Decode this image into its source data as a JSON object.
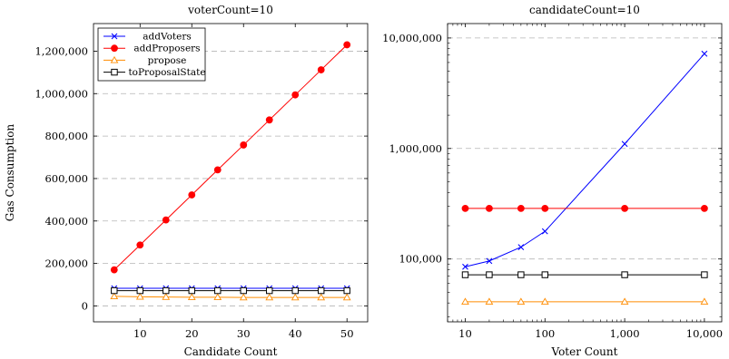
{
  "chart_data": [
    {
      "type": "line",
      "title": "voterCount=10",
      "xlabel": "Candidate Count",
      "ylabel": "Gas Consumption",
      "xlim": [
        1,
        54
      ],
      "ylim": [
        -75000,
        1330000
      ],
      "xticks": [
        10,
        20,
        30,
        40,
        50
      ],
      "xtick_labels": [
        "10",
        "20",
        "30",
        "40",
        "50"
      ],
      "yticks": [
        0,
        200000,
        400000,
        600000,
        800000,
        1000000,
        1200000
      ],
      "ytick_labels": [
        "0",
        "200,000",
        "400,000",
        "600,000",
        "800,000",
        "1,000,000",
        "1,200,000"
      ],
      "grid": "horizontal dashed",
      "legend_position": "top-left",
      "x": [
        5,
        10,
        15,
        20,
        25,
        30,
        35,
        40,
        45,
        50
      ],
      "series": [
        {
          "name": "addVoters",
          "color": "#0000ff",
          "marker": "x",
          "values": [
            83000,
            83000,
            83000,
            83000,
            83000,
            83000,
            83000,
            83000,
            83000,
            83000
          ]
        },
        {
          "name": "addProposers",
          "color": "#ff0000",
          "marker": "circle",
          "values": [
            170000,
            287000,
            405000,
            523000,
            641000,
            758000,
            876000,
            994000,
            1112000,
            1230000
          ]
        },
        {
          "name": "propose",
          "color": "#ff8c00",
          "marker": "triangle",
          "values": [
            45000,
            43000,
            42000,
            41000,
            41000,
            40000,
            40000,
            40000,
            40000,
            40000
          ]
        },
        {
          "name": "toProposalState",
          "color": "#000000",
          "marker": "square",
          "values": [
            72000,
            72000,
            72000,
            72000,
            72000,
            72000,
            72000,
            72000,
            72000,
            72000
          ]
        }
      ]
    },
    {
      "type": "line",
      "title": "candidateCount=10",
      "xlabel": "Voter Count",
      "ylabel": "",
      "xscale": "log",
      "yscale": "log",
      "xlim": [
        6,
        16500
      ],
      "ylim": [
        27000,
        13500000
      ],
      "xticks": [
        10,
        100,
        1000,
        10000
      ],
      "xtick_labels": [
        "10",
        "100",
        "1,000",
        "10,000"
      ],
      "yticks": [
        100000,
        1000000,
        10000000
      ],
      "ytick_labels": [
        "100,000",
        "1,000,000",
        "10,000,000"
      ],
      "grid": "horizontal dashed",
      "x": [
        10,
        20,
        50,
        100,
        1000,
        10000
      ],
      "series": [
        {
          "name": "addVoters",
          "color": "#0000ff",
          "marker": "x",
          "values": [
            85000,
            96000,
            128000,
            178000,
            1100000,
            7200000
          ]
        },
        {
          "name": "addProposers",
          "color": "#ff0000",
          "marker": "circle",
          "values": [
            287000,
            287000,
            287000,
            287000,
            287000,
            287000
          ]
        },
        {
          "name": "propose",
          "color": "#ff8c00",
          "marker": "triangle",
          "values": [
            41000,
            41000,
            41000,
            41000,
            41000,
            41000
          ]
        },
        {
          "name": "toProposalState",
          "color": "#000000",
          "marker": "square",
          "values": [
            72000,
            72000,
            72000,
            72000,
            72000,
            72000
          ]
        }
      ]
    }
  ]
}
